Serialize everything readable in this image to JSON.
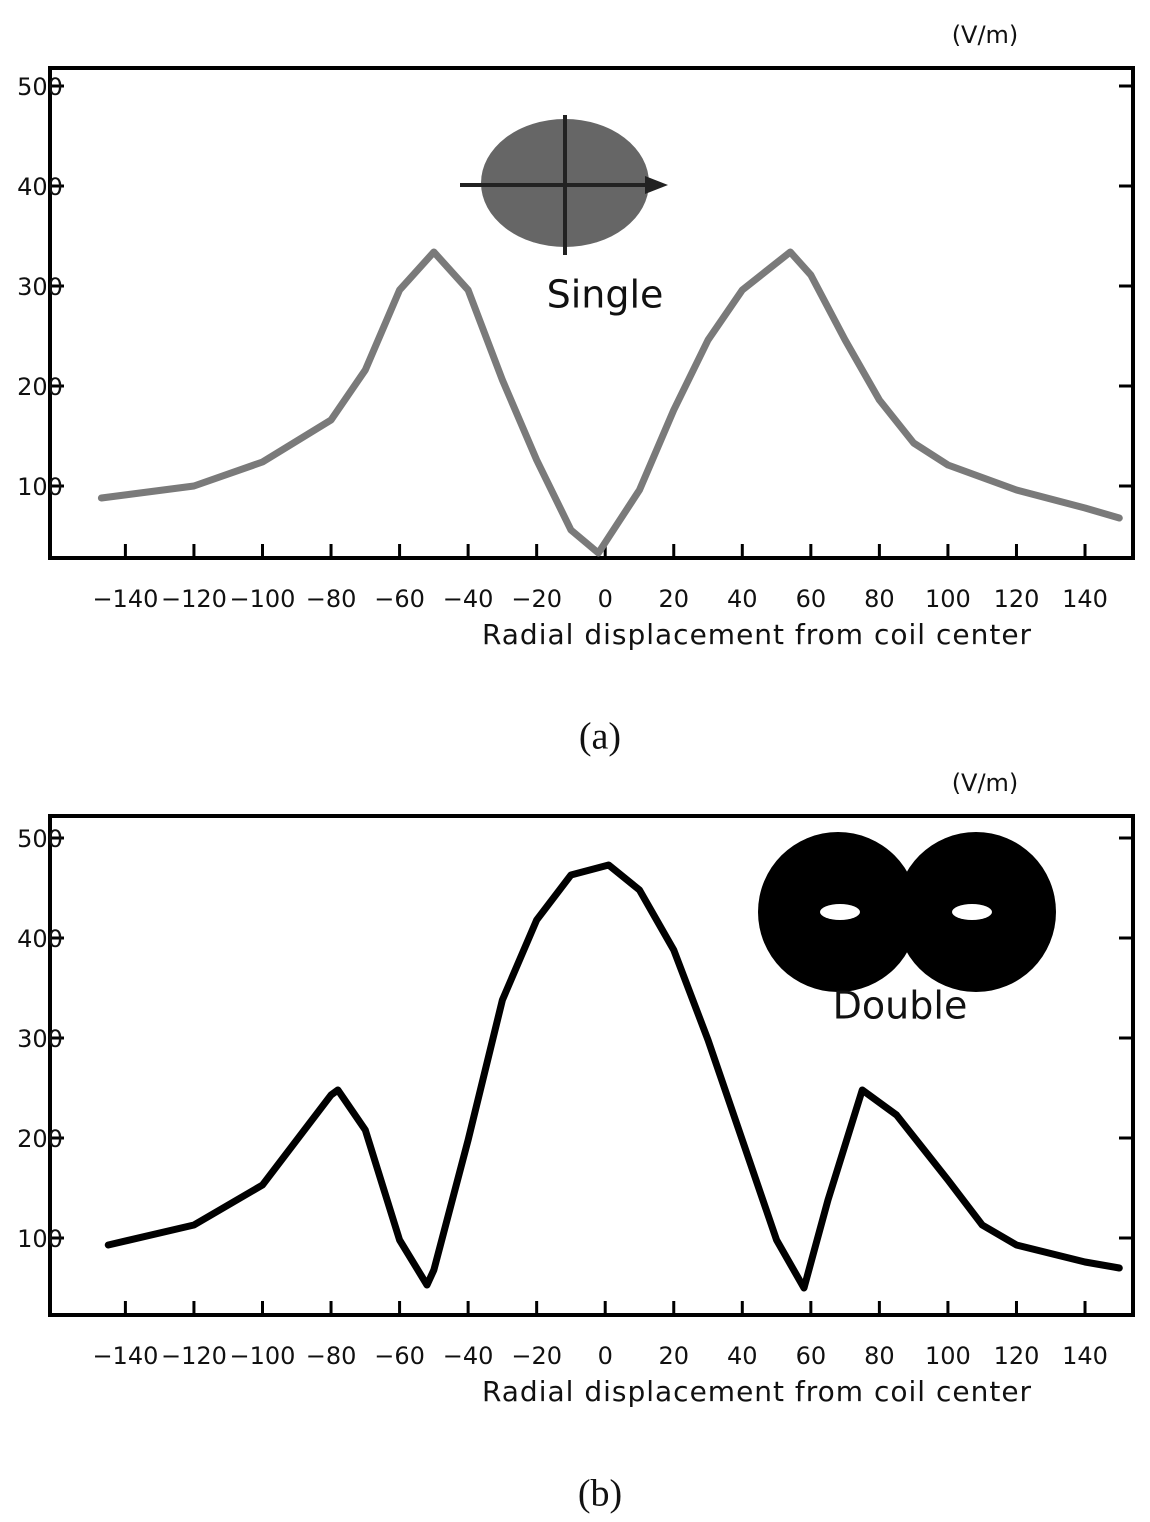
{
  "chart_data": [
    {
      "type": "line",
      "caption": "(a)",
      "y_unit": "(V/m)",
      "annotation": "Single",
      "xlabel": "Radial displacement from coil center",
      "x": [
        -147,
        -120,
        -100,
        -80,
        -70,
        -60,
        -50,
        -40,
        -30,
        -20,
        -10,
        -2,
        10,
        20,
        30,
        40,
        54,
        60,
        70,
        80,
        90,
        100,
        120,
        140,
        150
      ],
      "series": [
        {
          "name": "Single",
          "color": "#7a7a7a",
          "values": [
            88,
            100,
            124,
            166,
            216,
            296,
            334,
            296,
            206,
            126,
            56,
            33,
            96,
            176,
            246,
            296,
            334,
            311,
            246,
            186,
            143,
            121,
            96,
            78,
            68
          ]
        }
      ],
      "xlim": [
        -162,
        154
      ],
      "ylim": [
        28,
        518
      ],
      "xticks": [
        {
          "value": -140,
          "label": "−140"
        },
        {
          "value": -120,
          "label": "−120"
        },
        {
          "value": -100,
          "label": "−100"
        },
        {
          "value": -80,
          "label": "−80"
        },
        {
          "value": -60,
          "label": "−60"
        },
        {
          "value": -40,
          "label": "−40"
        },
        {
          "value": -20,
          "label": "−20"
        },
        0,
        20,
        40,
        60,
        80,
        100,
        120,
        140
      ],
      "yticks": [
        100,
        200,
        300,
        400,
        500
      ]
    },
    {
      "type": "line",
      "caption": "(b)",
      "y_unit": "(V/m)",
      "annotation": "Double",
      "xlabel": "Radial displacement from coil center",
      "x": [
        -145,
        -120,
        -100,
        -90,
        -80,
        -78,
        -70,
        -60,
        -52,
        -50,
        -40,
        -30,
        -20,
        -10,
        1,
        10,
        20,
        30,
        40,
        50,
        58,
        65,
        75,
        85,
        100,
        110,
        120,
        140,
        150
      ],
      "series": [
        {
          "name": "Double",
          "color": "#000000",
          "values": [
            93,
            113,
            153,
            198,
            243,
            248,
            208,
            98,
            53,
            68,
            198,
            338,
            418,
            463,
            473,
            448,
            388,
            298,
            198,
            98,
            50,
            138,
            248,
            223,
            158,
            113,
            93,
            76,
            70
          ]
        }
      ],
      "xlim": [
        -162,
        154
      ],
      "ylim": [
        23,
        522
      ],
      "xticks": [
        {
          "value": -140,
          "label": "−140"
        },
        {
          "value": -120,
          "label": "−120"
        },
        {
          "value": -100,
          "label": "−100"
        },
        {
          "value": -80,
          "label": "−80"
        },
        {
          "value": -60,
          "label": "−60"
        },
        {
          "value": -40,
          "label": "−40"
        },
        {
          "value": -20,
          "label": "−20"
        },
        0,
        20,
        40,
        60,
        80,
        100,
        120,
        140
      ],
      "yticks": [
        100,
        200,
        300,
        400,
        500
      ]
    }
  ]
}
